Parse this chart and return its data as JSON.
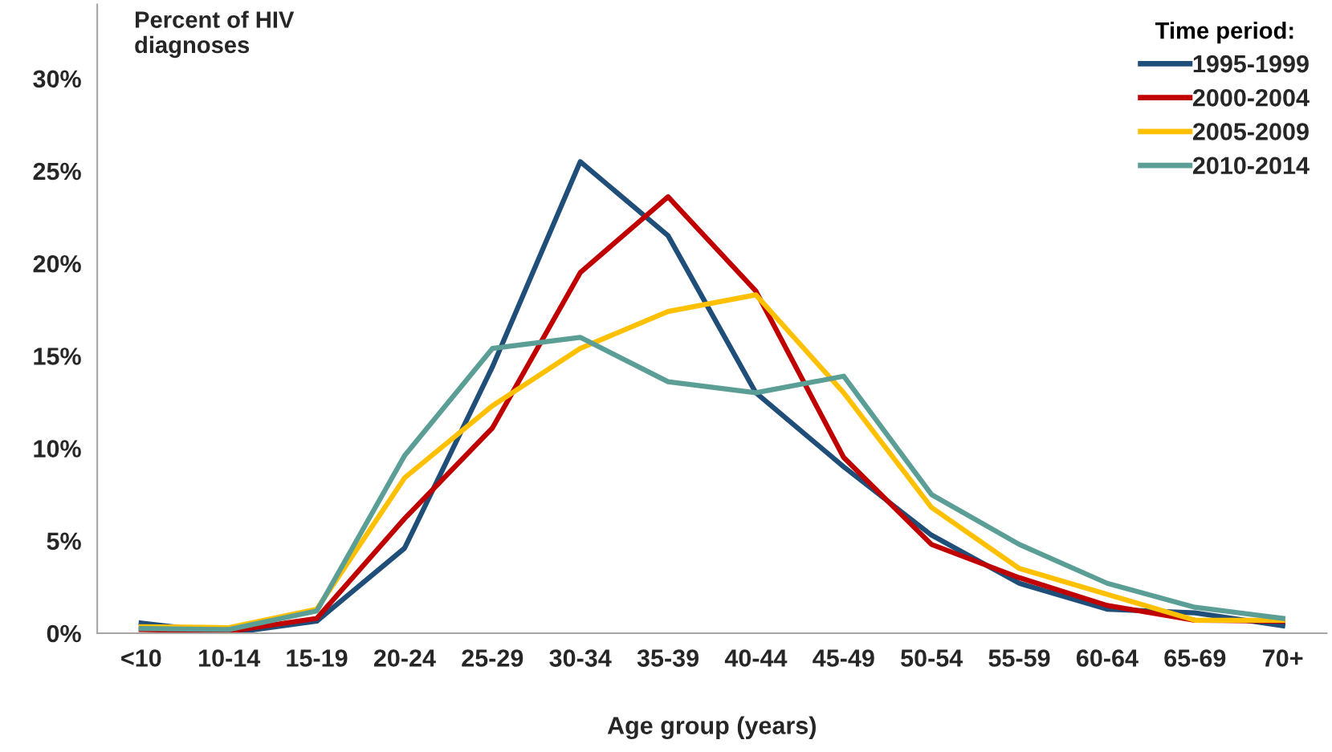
{
  "chart_data": {
    "type": "line",
    "ylabel": "Percent of HIV\ndiagnoses",
    "xlabel": "Age group (years)",
    "legend_title": "Time period:",
    "legend": "top right",
    "grid": false,
    "marker": "none",
    "line_style": "solid",
    "categories": [
      "<10",
      "10-14",
      "15-19",
      "20-24",
      "25-29",
      "30-34",
      "35-39",
      "40-44",
      "45-49",
      "50-54",
      "55-59",
      "60-64",
      "65-69",
      "70+"
    ],
    "ylim": [
      0,
      34
    ],
    "yticks": [
      {
        "value": 0,
        "label": "0%"
      },
      {
        "value": 5,
        "label": "5%"
      },
      {
        "value": 10,
        "label": "10%"
      },
      {
        "value": 15,
        "label": "15%"
      },
      {
        "value": 20,
        "label": "20%"
      },
      {
        "value": 25,
        "label": "25%"
      },
      {
        "value": 30,
        "label": "30%"
      }
    ],
    "series": [
      {
        "name": "1995-1999",
        "color": "#1f4e79",
        "values": [
          0.55,
          0.0,
          0.65,
          4.6,
          14.4,
          25.5,
          21.5,
          13.0,
          9.0,
          5.3,
          2.7,
          1.3,
          1.1,
          0.4
        ]
      },
      {
        "name": "2000-2004",
        "color": "#c00000",
        "values": [
          0.2,
          0.1,
          0.8,
          6.2,
          11.1,
          19.5,
          23.6,
          18.5,
          9.5,
          4.8,
          3.0,
          1.5,
          0.7,
          0.65
        ]
      },
      {
        "name": "2005-2009",
        "color": "#ffc000",
        "values": [
          0.35,
          0.3,
          1.3,
          8.4,
          12.3,
          15.4,
          17.4,
          18.3,
          13.0,
          6.8,
          3.5,
          2.1,
          0.7,
          0.7
        ]
      },
      {
        "name": "2010-2014",
        "color": "#5b9e96",
        "values": [
          0.25,
          0.2,
          1.2,
          9.6,
          15.4,
          16.0,
          13.6,
          13.0,
          13.9,
          7.5,
          4.8,
          2.7,
          1.4,
          0.8
        ]
      }
    ]
  }
}
